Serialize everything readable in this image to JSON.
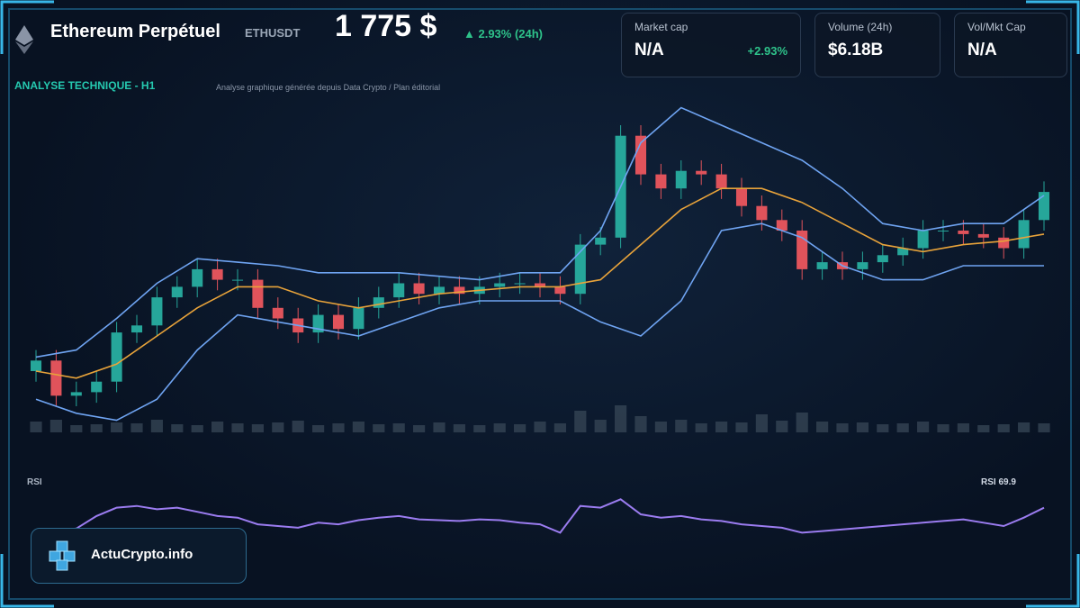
{
  "header": {
    "title": "Ethereum Perpétuel",
    "symbol": "ETHUSDT",
    "price": "1 775 $",
    "change": "▲ 2.93% (24h)"
  },
  "cards": [
    {
      "label": "Market cap",
      "value": "N/A",
      "change": "+2.93%"
    },
    {
      "label": "Volume (24h)",
      "value": "$6.18B"
    },
    {
      "label": "Vol/Mkt Cap",
      "value": "N/A"
    }
  ],
  "section": {
    "title": "ANALYSE TECHNIQUE - H1",
    "note": "Analyse graphique générée depuis Data Crypto / Plan éditorial"
  },
  "rsi_label": "RSI",
  "rsi_value_label": "RSI 69.9",
  "brand": "ActuCrypto.info",
  "chart_data": [
    {
      "type": "candlestick",
      "ylim": [
        0,
        100
      ],
      "up_color": "#26a69a",
      "down_color": "#e0535b",
      "open": [
        20,
        23,
        13,
        14,
        17,
        31,
        33,
        41,
        44,
        49,
        46,
        46,
        38,
        35,
        31,
        36,
        32,
        38,
        41,
        45,
        42,
        44,
        42,
        44,
        45,
        45,
        44,
        42,
        56,
        58,
        87,
        76,
        72,
        77,
        76,
        72,
        67,
        63,
        60,
        49,
        51,
        49,
        51,
        53,
        55,
        60,
        60,
        59,
        58,
        55,
        63
      ],
      "high": [
        26,
        26,
        17,
        20,
        34,
        36,
        44,
        47,
        52,
        52,
        49,
        49,
        41,
        38,
        39,
        39,
        41,
        44,
        48,
        48,
        47,
        47,
        47,
        48,
        48,
        48,
        47,
        59,
        61,
        90,
        90,
        79,
        80,
        80,
        79,
        75,
        70,
        66,
        63,
        54,
        54,
        54,
        56,
        58,
        63,
        63,
        63,
        62,
        61,
        66,
        74
      ],
      "low": [
        17,
        10,
        10,
        11,
        14,
        28,
        30,
        38,
        41,
        43,
        43,
        35,
        32,
        28,
        28,
        29,
        29,
        35,
        38,
        39,
        39,
        39,
        39,
        41,
        42,
        41,
        39,
        39,
        53,
        55,
        73,
        69,
        69,
        73,
        69,
        64,
        60,
        57,
        46,
        46,
        46,
        46,
        48,
        50,
        52,
        57,
        56,
        55,
        52,
        52,
        60
      ],
      "close": [
        23,
        13,
        14,
        17,
        31,
        33,
        41,
        44,
        49,
        46,
        46,
        38,
        35,
        31,
        36,
        32,
        38,
        41,
        45,
        42,
        44,
        42,
        44,
        45,
        45,
        44,
        42,
        56,
        58,
        87,
        76,
        72,
        77,
        76,
        72,
        67,
        63,
        60,
        49,
        51,
        49,
        51,
        53,
        55,
        60,
        60,
        59,
        58,
        55,
        63,
        71
      ],
      "series": [
        {
          "color": "#6fa4f2",
          "values": [
            24,
            26,
            35,
            45,
            52,
            51,
            50,
            48,
            48,
            48,
            47,
            46,
            48,
            48,
            60,
            85,
            95,
            90,
            85,
            80,
            72,
            62,
            60,
            62,
            62,
            70
          ]
        },
        {
          "color": "#e8a33a",
          "values": [
            20,
            18,
            22,
            30,
            38,
            44,
            44,
            40,
            38,
            40,
            42,
            43,
            44,
            44,
            46,
            56,
            66,
            72,
            72,
            68,
            62,
            56,
            54,
            56,
            57,
            59
          ]
        },
        {
          "color": "#6fa4f2",
          "values": [
            12,
            8,
            6,
            12,
            26,
            36,
            34,
            32,
            30,
            34,
            38,
            40,
            40,
            40,
            34,
            30,
            40,
            60,
            62,
            58,
            50,
            46,
            46,
            50,
            50,
            50
          ]
        }
      ]
    },
    {
      "type": "bar",
      "ylim": [
        0,
        50
      ],
      "color": "#3a4a5a",
      "values": [
        12,
        14,
        8,
        9,
        11,
        10,
        14,
        9,
        8,
        12,
        10,
        9,
        11,
        13,
        8,
        10,
        12,
        9,
        10,
        8,
        11,
        9,
        8,
        10,
        9,
        12,
        10,
        24,
        14,
        30,
        18,
        12,
        14,
        10,
        12,
        11,
        20,
        13,
        22,
        12,
        10,
        11,
        9,
        10,
        12,
        9,
        10,
        8,
        9,
        11,
        10
      ]
    },
    {
      "type": "line",
      "ylim": [
        20,
        90
      ],
      "color": "#9b7cf0",
      "values": [
        40,
        42,
        45,
        60,
        70,
        72,
        68,
        70,
        65,
        60,
        58,
        50,
        48,
        46,
        52,
        50,
        55,
        58,
        60,
        56,
        55,
        54,
        56,
        55,
        52,
        50,
        40,
        72,
        70,
        80,
        62,
        58,
        60,
        56,
        54,
        50,
        48,
        46,
        40,
        42,
        44,
        46,
        48,
        50,
        52,
        54,
        56,
        52,
        48,
        58,
        69.9
      ]
    }
  ]
}
